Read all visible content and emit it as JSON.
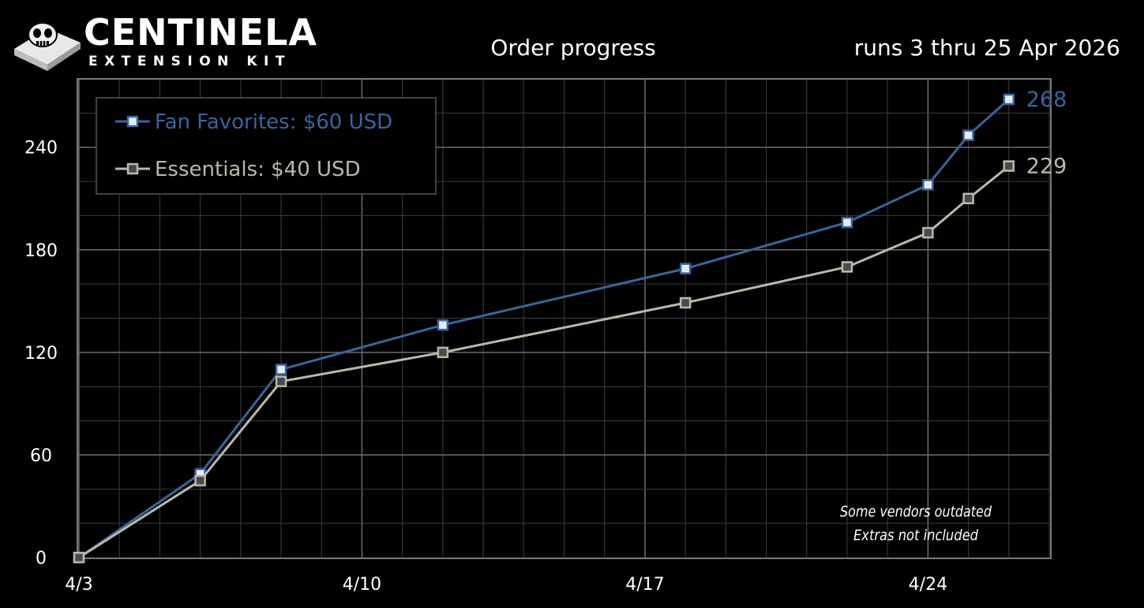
{
  "header": {
    "brand_name": "CENTINELA",
    "brand_tagline": "EXTENSION KIT",
    "title": "Order progress",
    "date_range": "runs 3 thru 25 Apr 2026"
  },
  "chart_data": {
    "type": "line",
    "title": "Order progress",
    "subtitle": "runs 3 thru 25 Apr 2026",
    "xlabel": "",
    "ylabel": "",
    "xlim": [
      "2026-04-03",
      "2026-04-27"
    ],
    "ylim": [
      0,
      280
    ],
    "x_ticks": [
      "2026-04-03",
      "2026-04-10",
      "2026-04-17",
      "2026-04-24"
    ],
    "x_tick_labels": [
      "4/3",
      "4/10",
      "4/17",
      "4/24"
    ],
    "y_ticks": [
      0,
      60,
      120,
      180,
      240
    ],
    "grid": true,
    "legend_position": "top-left",
    "series": [
      {
        "name": "Fan Favorites: $60 USD",
        "color": "#3a659c",
        "end_label": "268",
        "points": [
          {
            "x": "2026-04-03",
            "y": 0
          },
          {
            "x": "2026-04-06",
            "y": 49
          },
          {
            "x": "2026-04-08",
            "y": 110
          },
          {
            "x": "2026-04-12",
            "y": 136
          },
          {
            "x": "2026-04-18",
            "y": 169
          },
          {
            "x": "2026-04-22",
            "y": 196
          },
          {
            "x": "2026-04-24",
            "y": 218
          },
          {
            "x": "2026-04-25",
            "y": 247
          },
          {
            "x": "2026-04-26",
            "y": 268
          }
        ]
      },
      {
        "name": "Essentials: $40 USD",
        "color": "#bcb8aa",
        "end_label": "229",
        "points": [
          {
            "x": "2026-04-03",
            "y": 0
          },
          {
            "x": "2026-04-06",
            "y": 45
          },
          {
            "x": "2026-04-08",
            "y": 103
          },
          {
            "x": "2026-04-12",
            "y": 120
          },
          {
            "x": "2026-04-18",
            "y": 149
          },
          {
            "x": "2026-04-22",
            "y": 170
          },
          {
            "x": "2026-04-24",
            "y": 190
          },
          {
            "x": "2026-04-25",
            "y": 210
          },
          {
            "x": "2026-04-26",
            "y": 229
          }
        ]
      }
    ],
    "annotations": [
      "Some vendors outdated",
      "Extras not included"
    ]
  }
}
